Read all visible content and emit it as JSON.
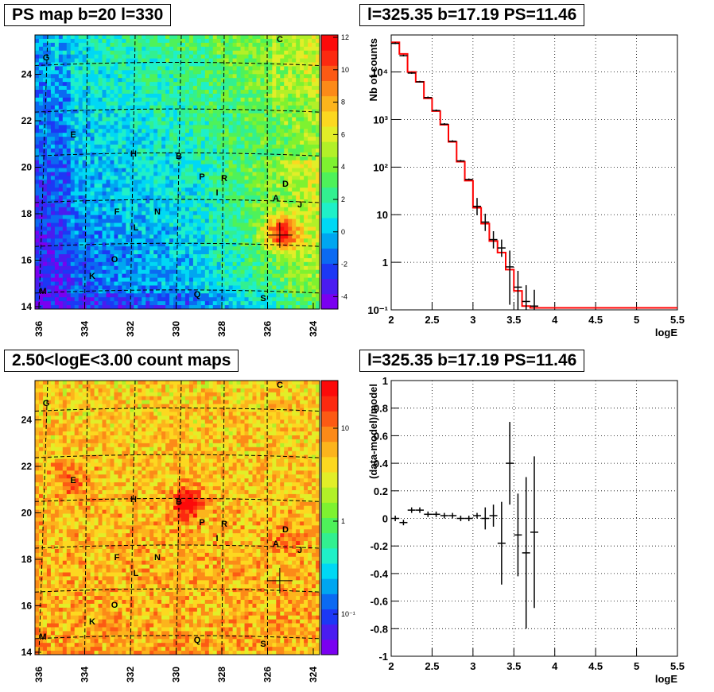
{
  "panels": {
    "map_title": "PS map b=20 l=330",
    "spectrum_title": "l=325.35 b=17.19 PS=11.46",
    "countmap_title": "2.50<logE<3.00 count maps",
    "residual_title": "l=325.35 b=17.19 PS=11.46"
  },
  "sky_maps": {
    "x_ticks": [
      "336",
      "334",
      "332",
      "330",
      "328",
      "326",
      "324"
    ],
    "y_ticks": [
      "14",
      "16",
      "18",
      "20",
      "22",
      "24"
    ],
    "source_labels": [
      "A",
      "B",
      "C",
      "D",
      "E",
      "F",
      "G",
      "H",
      "I",
      "J",
      "K",
      "L",
      "M",
      "N",
      "O",
      "P",
      "Q",
      "R",
      "S"
    ],
    "ps_colorbar_ticks": [
      "12",
      "10",
      "8",
      "6",
      "4",
      "2",
      "0",
      "-2",
      "-4"
    ],
    "count_colorbar_ticks": [
      "10",
      "1",
      "10⁻¹"
    ],
    "ps_range": [
      -5,
      12
    ],
    "marker_position": {
      "l": 325.6,
      "b": 17.2
    }
  },
  "chart_data": [
    {
      "type": "line",
      "title": "l=325.35 b=17.19 PS=11.46",
      "xlabel": "logE",
      "ylabel": "Nb of counts",
      "xlim": [
        2,
        5.5
      ],
      "ylim": [
        0.1,
        60000
      ],
      "log_y": true,
      "grid": true,
      "x_ticks": [
        "2",
        "2.5",
        "3",
        "3.5",
        "4",
        "4.5",
        "5",
        "5.5"
      ],
      "y_ticks": [
        "10⁻¹",
        "1",
        "10",
        "10²",
        "10³",
        "10⁴"
      ],
      "series": [
        {
          "kind": "data_points",
          "points": [
            {
              "x": 2.05,
              "y": 40000
            },
            {
              "x": 2.15,
              "y": 22000
            },
            {
              "x": 2.25,
              "y": 9500
            },
            {
              "x": 2.35,
              "y": 6200
            },
            {
              "x": 2.45,
              "y": 2900
            },
            {
              "x": 2.55,
              "y": 1550
            },
            {
              "x": 2.65,
              "y": 800
            },
            {
              "x": 2.75,
              "y": 350
            },
            {
              "x": 2.85,
              "y": 135
            },
            {
              "x": 2.95,
              "y": 55
            },
            {
              "x": 3.05,
              "y": 15
            },
            {
              "x": 3.15,
              "y": 7
            },
            {
              "x": 3.25,
              "y": 3
            },
            {
              "x": 3.35,
              "y": 2
            },
            {
              "x": 3.45,
              "y": 0.8
            },
            {
              "x": 3.55,
              "y": 0.3
            },
            {
              "x": 3.65,
              "y": 0.15
            },
            {
              "x": 3.75,
              "y": 0.12
            }
          ]
        },
        {
          "kind": "model_histogram",
          "color": "#ff0000",
          "bins": [
            {
              "x0": 2.0,
              "x1": 2.1,
              "y": 42000
            },
            {
              "x0": 2.1,
              "x1": 2.2,
              "y": 24000
            },
            {
              "x0": 2.2,
              "x1": 2.3,
              "y": 10000
            },
            {
              "x0": 2.3,
              "x1": 2.4,
              "y": 6200
            },
            {
              "x0": 2.4,
              "x1": 2.5,
              "y": 2800
            },
            {
              "x0": 2.5,
              "x1": 2.6,
              "y": 1500
            },
            {
              "x0": 2.6,
              "x1": 2.7,
              "y": 780
            },
            {
              "x0": 2.7,
              "x1": 2.8,
              "y": 340
            },
            {
              "x0": 2.8,
              "x1": 2.9,
              "y": 130
            },
            {
              "x0": 2.9,
              "x1": 3.0,
              "y": 52
            },
            {
              "x0": 3.0,
              "x1": 3.1,
              "y": 14
            },
            {
              "x0": 3.1,
              "x1": 3.2,
              "y": 6.5
            },
            {
              "x0": 3.2,
              "x1": 3.3,
              "y": 2.8
            },
            {
              "x0": 3.3,
              "x1": 3.4,
              "y": 1.6
            },
            {
              "x0": 3.4,
              "x1": 3.5,
              "y": 0.7
            },
            {
              "x0": 3.5,
              "x1": 3.6,
              "y": 0.25
            },
            {
              "x0": 3.6,
              "x1": 3.7,
              "y": 0.12
            },
            {
              "x0": 3.7,
              "x1": 5.5,
              "y": 0.11
            }
          ]
        }
      ]
    },
    {
      "type": "scatter",
      "title": "l=325.35 b=17.19 PS=11.46",
      "xlabel": "logE",
      "ylabel": "(data-model)/model",
      "xlim": [
        2,
        5.5
      ],
      "ylim": [
        -1,
        1
      ],
      "grid": true,
      "x_ticks": [
        "2",
        "2.5",
        "3",
        "3.5",
        "4",
        "4.5",
        "5",
        "5.5"
      ],
      "y_ticks": [
        "1",
        "0.8",
        "0.6",
        "0.4",
        "0.2",
        "0",
        "-0.2",
        "-0.4",
        "-0.6",
        "-0.8",
        "-1"
      ],
      "points": [
        {
          "x": 2.05,
          "y": 0.0
        },
        {
          "x": 2.15,
          "y": -0.03
        },
        {
          "x": 2.25,
          "y": 0.06
        },
        {
          "x": 2.35,
          "y": 0.06
        },
        {
          "x": 2.45,
          "y": 0.03
        },
        {
          "x": 2.55,
          "y": 0.03
        },
        {
          "x": 2.65,
          "y": 0.02
        },
        {
          "x": 2.75,
          "y": 0.02
        },
        {
          "x": 2.85,
          "y": 0.0
        },
        {
          "x": 2.95,
          "y": 0.0
        },
        {
          "x": 3.05,
          "y": 0.02
        },
        {
          "x": 3.15,
          "y": 0.0
        },
        {
          "x": 3.25,
          "y": 0.02
        },
        {
          "x": 3.35,
          "y": -0.18
        },
        {
          "x": 3.45,
          "y": 0.4
        },
        {
          "x": 3.55,
          "y": -0.12
        },
        {
          "x": 3.65,
          "y": -0.25
        },
        {
          "x": 3.75,
          "y": -0.1
        }
      ]
    }
  ]
}
